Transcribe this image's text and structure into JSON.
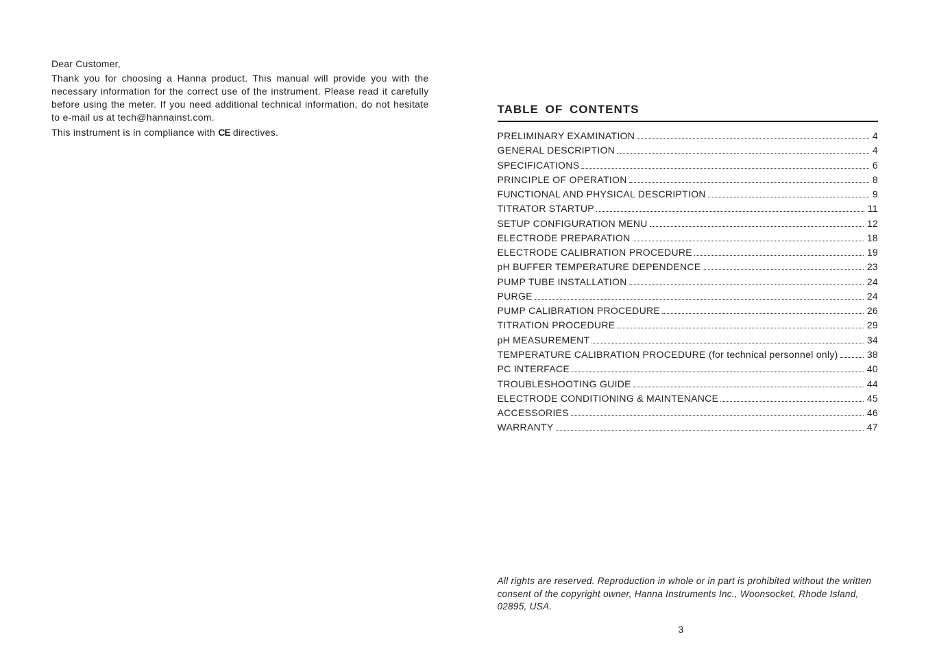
{
  "left": {
    "greeting": "Dear Customer,",
    "para": "Thank you for choosing a Hanna product. This manual will provide you with the necessary information for the correct use of the instrument. Please read it carefully before using the meter. If you need additional technical information, do not hesitate to e-mail us at tech@hannainst.com.",
    "compliance_pre": "This instrument is in compliance with ",
    "compliance_mark": "CE",
    "compliance_post": " directives."
  },
  "right": {
    "heading": "TABLE OF CONTENTS",
    "toc": [
      {
        "label": "PRELIMINARY EXAMINATION",
        "page": "4"
      },
      {
        "label": "GENERAL DESCRIPTION",
        "page": "4"
      },
      {
        "label": "SPECIFICATIONS",
        "page": "6"
      },
      {
        "label": "PRINCIPLE OF OPERATION",
        "page": "8"
      },
      {
        "label": "FUNCTIONAL AND PHYSICAL DESCRIPTION",
        "page": "9"
      },
      {
        "label": "TITRATOR STARTUP",
        "page": "11"
      },
      {
        "label": "SETUP CONFIGURATION MENU",
        "page": "12"
      },
      {
        "label": "ELECTRODE PREPARATION",
        "page": "18"
      },
      {
        "label": "ELECTRODE CALIBRATION PROCEDURE",
        "page": "19"
      },
      {
        "label": "pH BUFFER TEMPERATURE DEPENDENCE",
        "page": "23"
      },
      {
        "label": "PUMP TUBE INSTALLATION",
        "page": "24"
      },
      {
        "label": "PURGE",
        "page": "24"
      },
      {
        "label": "PUMP CALIBRATION PROCEDURE",
        "page": "26"
      },
      {
        "label": "TITRATION PROCEDURE",
        "page": "29"
      },
      {
        "label": "pH MEASUREMENT",
        "page": "34"
      },
      {
        "label": "TEMPERATURE CALIBRATION PROCEDURE (for technical personnel only)",
        "page": "38"
      },
      {
        "label": "PC INTERFACE",
        "page": "40"
      },
      {
        "label": "TROUBLESHOOTING GUIDE",
        "page": "44"
      },
      {
        "label": "ELECTRODE CONDITIONING & MAINTENANCE",
        "page": "45"
      },
      {
        "label": "ACCESSORIES",
        "page": "46"
      },
      {
        "label": "WARRANTY",
        "page": "47"
      }
    ],
    "footer": "All rights are reserved. Reproduction in whole or in part is prohibited without the written consent of the copyright owner, Hanna Instruments Inc., Woonsocket, Rhode Island, 02895, USA.",
    "page_number": "3"
  },
  "colors": {
    "text": "#231f20",
    "background": "#ffffff"
  },
  "typography": {
    "body_fontsize": 14,
    "heading_fontsize": 17,
    "footer_fontsize": 13.5
  }
}
